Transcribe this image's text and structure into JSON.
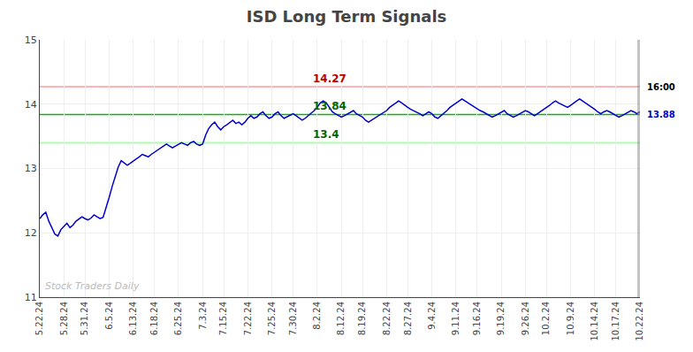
{
  "chart_data": {
    "type": "line",
    "title": "ISD Long Term Signals",
    "color": "#0000cc",
    "grid": true,
    "ylim": [
      11,
      15
    ],
    "yticks": [
      11,
      12,
      13,
      14,
      15
    ],
    "hlines": [
      {
        "value": 14.27,
        "color": "#ffb3b3",
        "label": "14.27",
        "label_color": "#bb0000"
      },
      {
        "value": 13.84,
        "color": "#00bb00",
        "label": "13.84",
        "label_color": "#006600"
      },
      {
        "value": 13.4,
        "color": "#aaffaa",
        "label": "13.4",
        "label_color": "#006600"
      }
    ],
    "annotations": [
      {
        "text": "16:00",
        "color": "#000000"
      },
      {
        "text": "13.88",
        "color": "#0000cc"
      },
      {
        "text": "Stock Traders Daily",
        "color": "#bbbbbb"
      }
    ],
    "vline": {
      "x": 199,
      "color": "#888888"
    },
    "categories": [
      "5.22.24",
      null,
      null,
      null,
      null,
      null,
      null,
      null,
      "5.28.24",
      null,
      null,
      null,
      null,
      null,
      null,
      "5.31.24",
      null,
      null,
      null,
      null,
      null,
      null,
      null,
      "6.5.24",
      null,
      null,
      null,
      null,
      null,
      null,
      null,
      "6.13.24",
      null,
      null,
      null,
      null,
      null,
      null,
      "6.18.24",
      null,
      null,
      null,
      null,
      null,
      null,
      null,
      "6.25.24",
      null,
      null,
      null,
      null,
      null,
      null,
      null,
      "7.3.24",
      null,
      null,
      null,
      null,
      null,
      null,
      "7.15.24",
      null,
      null,
      null,
      null,
      null,
      null,
      null,
      "7.22.24",
      null,
      null,
      null,
      null,
      null,
      null,
      null,
      "7.25.24",
      null,
      null,
      null,
      null,
      null,
      null,
      "7.30.24",
      null,
      null,
      null,
      null,
      null,
      null,
      null,
      "8.2.24",
      null,
      null,
      null,
      null,
      null,
      null,
      null,
      "8.12.24",
      null,
      null,
      null,
      null,
      null,
      null,
      "8.19.24",
      null,
      null,
      null,
      null,
      null,
      null,
      null,
      "8.22.24",
      null,
      null,
      null,
      null,
      null,
      null,
      "8.27.24",
      null,
      null,
      null,
      null,
      null,
      null,
      null,
      "9.4.24",
      null,
      null,
      null,
      null,
      null,
      null,
      null,
      "9.11.24",
      null,
      null,
      null,
      null,
      null,
      null,
      "9.16.24",
      null,
      null,
      null,
      null,
      null,
      null,
      null,
      "9.19.24",
      null,
      null,
      null,
      null,
      null,
      null,
      null,
      "9.26.24",
      null,
      null,
      null,
      null,
      null,
      null,
      "10.2.24",
      null,
      null,
      null,
      null,
      null,
      null,
      null,
      "10.9.24",
      null,
      null,
      null,
      null,
      null,
      null,
      null,
      "10.14.24",
      null,
      null,
      null,
      null,
      null,
      null,
      "10.17.24",
      null,
      null,
      null,
      null,
      null,
      null,
      null,
      "10.22.24"
    ],
    "values": [
      12.22,
      12.28,
      12.32,
      12.18,
      12.08,
      11.98,
      11.95,
      12.05,
      12.1,
      12.15,
      12.08,
      12.12,
      12.18,
      12.22,
      12.25,
      12.22,
      12.2,
      12.23,
      12.28,
      12.25,
      12.22,
      12.24,
      12.38,
      12.55,
      12.72,
      12.88,
      13.02,
      13.12,
      13.08,
      13.05,
      13.08,
      13.12,
      13.15,
      13.18,
      13.22,
      13.2,
      13.18,
      13.22,
      13.25,
      13.28,
      13.32,
      13.35,
      13.38,
      13.35,
      13.32,
      13.35,
      13.38,
      13.4,
      13.38,
      13.36,
      13.4,
      13.42,
      13.38,
      13.36,
      13.38,
      13.52,
      13.62,
      13.68,
      13.72,
      13.65,
      13.6,
      13.65,
      13.68,
      13.72,
      13.75,
      13.7,
      13.72,
      13.68,
      13.72,
      13.78,
      13.82,
      13.78,
      13.8,
      13.85,
      13.88,
      13.82,
      13.78,
      13.8,
      13.85,
      13.88,
      13.82,
      13.78,
      13.8,
      13.82,
      13.85,
      13.82,
      13.78,
      13.75,
      13.78,
      13.82,
      13.85,
      13.9,
      13.95,
      14.02,
      14.05,
      14.02,
      13.95,
      13.88,
      13.85,
      13.82,
      13.8,
      13.82,
      13.85,
      13.88,
      13.9,
      13.85,
      13.82,
      13.8,
      13.75,
      13.72,
      13.75,
      13.78,
      13.82,
      13.85,
      13.88,
      13.9,
      13.95,
      13.98,
      14.02,
      14.05,
      14.02,
      13.98,
      13.95,
      13.92,
      13.9,
      13.88,
      13.85,
      13.82,
      13.85,
      13.88,
      13.85,
      13.8,
      13.78,
      13.82,
      13.85,
      13.9,
      13.95,
      13.98,
      14.02,
      14.05,
      14.08,
      14.05,
      14.02,
      13.98,
      13.95,
      13.92,
      13.9,
      13.88,
      13.85,
      13.82,
      13.8,
      13.82,
      13.85,
      13.88,
      13.9,
      13.85,
      13.82,
      13.8,
      13.82,
      13.85,
      13.88,
      13.9,
      13.88,
      13.85,
      13.82,
      13.85,
      13.88,
      13.92,
      13.95,
      13.98,
      14.02,
      14.05,
      14.02,
      14.0,
      13.98,
      13.95,
      13.98,
      14.02,
      14.05,
      14.08,
      14.05,
      14.02,
      13.98,
      13.95,
      13.92,
      13.88,
      13.85,
      13.88,
      13.9,
      13.88,
      13.85,
      13.82,
      13.8,
      13.82,
      13.85,
      13.88,
      13.9,
      13.88,
      13.85,
      13.88
    ]
  }
}
